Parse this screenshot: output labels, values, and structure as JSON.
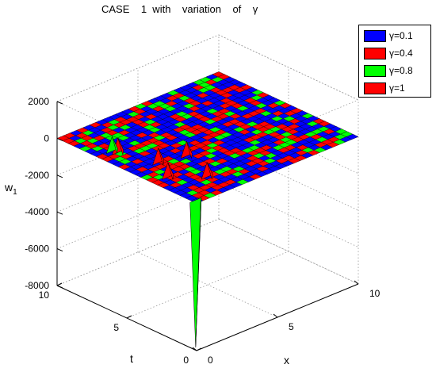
{
  "chart_data": {
    "type": "surface3d",
    "title": "CASE    1  with    variation    of    γ",
    "xlabel": "x",
    "ylabel": "t",
    "zlabel": "w",
    "zlabel_sub": "1",
    "x_ticks": [
      "0",
      "5",
      "10"
    ],
    "t_ticks": [
      "0",
      "5",
      "10"
    ],
    "z_ticks": [
      "2000",
      "0",
      "-2000",
      "-4000",
      "-6000",
      "-8000"
    ],
    "x_range": [
      0,
      10
    ],
    "t_range": [
      0,
      10
    ],
    "z_range": [
      -8000,
      2000
    ],
    "grid": true,
    "legend_position": "top-right",
    "series": [
      {
        "name": "γ=0.1",
        "color": "#0000ff",
        "surface_level": 0
      },
      {
        "name": "γ=0.4",
        "color": "#ff0000",
        "surface_level": 0
      },
      {
        "name": "γ=0.8",
        "color": "#00ff00",
        "surface_level": 0,
        "min_spike": -8000
      },
      {
        "name": "γ=1",
        "color": "#ff0000",
        "surface_level": 0,
        "max_spike": 800
      }
    ]
  }
}
